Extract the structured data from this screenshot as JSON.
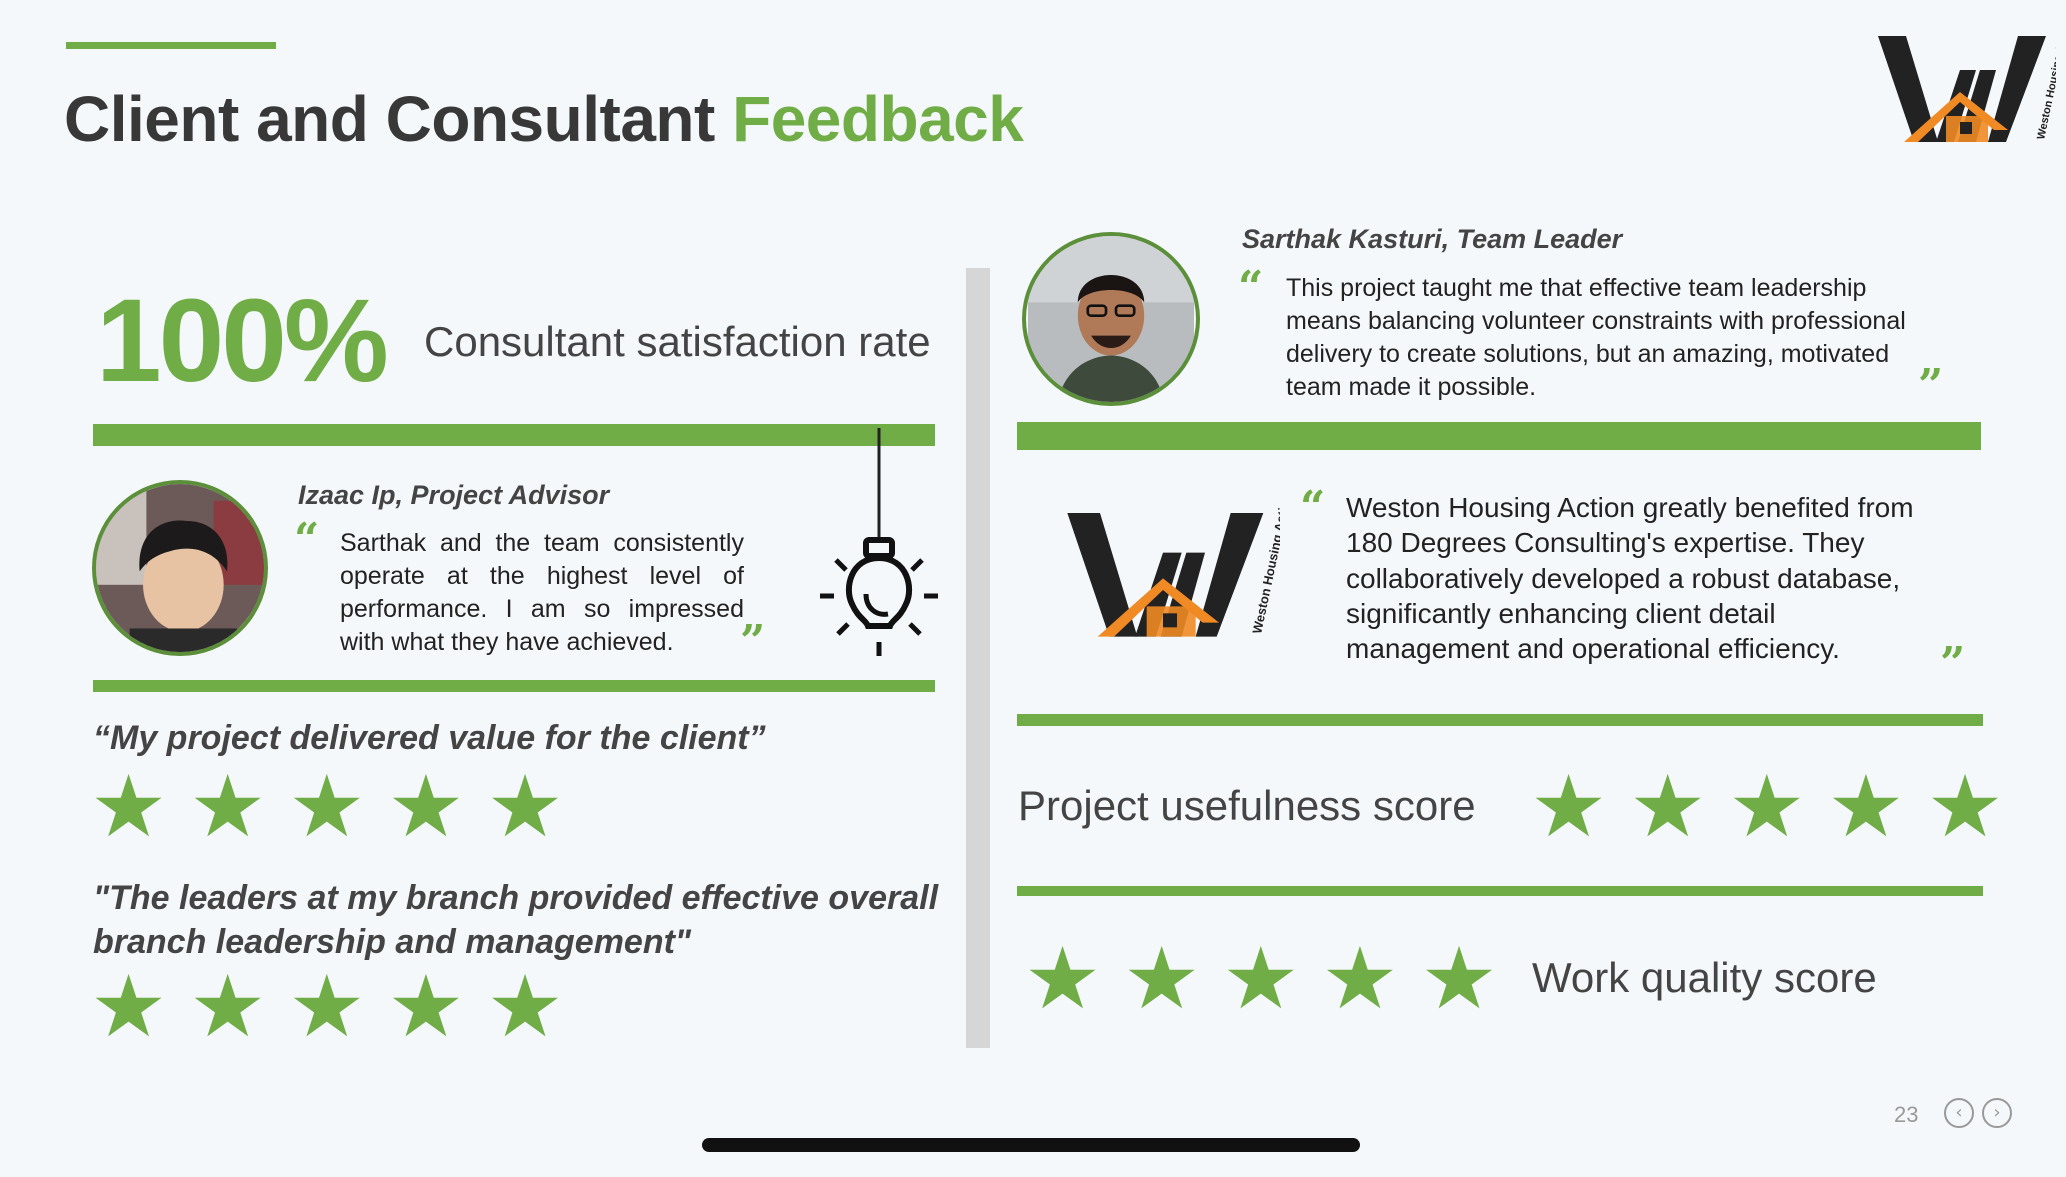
{
  "title": {
    "main": "Client and Consultant ",
    "accent": "Feedback"
  },
  "stat": {
    "value": "100%",
    "label": "Consultant satisfaction rate"
  },
  "advisor": {
    "name": "Izaac Ip, Project Advisor",
    "quote": "Sarthak and the team consistently operate at the highest level of performance. I am so impressed with what they have achieved."
  },
  "leader": {
    "name": "Sarthak Kasturi, Team Leader",
    "quote": "This project taught me that effective team leadership means balancing volunteer constraints with professional delivery to create solutions, but an amazing, motivated team made it possible."
  },
  "client": {
    "quote": "Weston Housing Action greatly benefited from 180 Degrees Consulting's expertise. They collaboratively developed a robust database, significantly enhancing client detail management and operational efficiency.",
    "logo_text": "Weston Housing Action"
  },
  "ratings": {
    "value_statement": "“My project delivered value for the client”",
    "value_stars": 5,
    "leadership_statement": "\"The leaders at my branch provided effective overall branch leadership and management\"",
    "leadership_stars": 5,
    "usefulness_label": "Project usefulness score",
    "usefulness_stars": 5,
    "quality_label": "Work quality score",
    "quality_stars": 5
  },
  "icons": {
    "quote_open": "quote-open-icon",
    "quote_close": "quote-close-icon",
    "star": "star-icon",
    "bulb": "lightbulb-icon"
  },
  "colors": {
    "accent": "#70ad47",
    "text": "#383838",
    "divider": "#d6d6d6"
  },
  "footer": {
    "page_number": "23"
  }
}
